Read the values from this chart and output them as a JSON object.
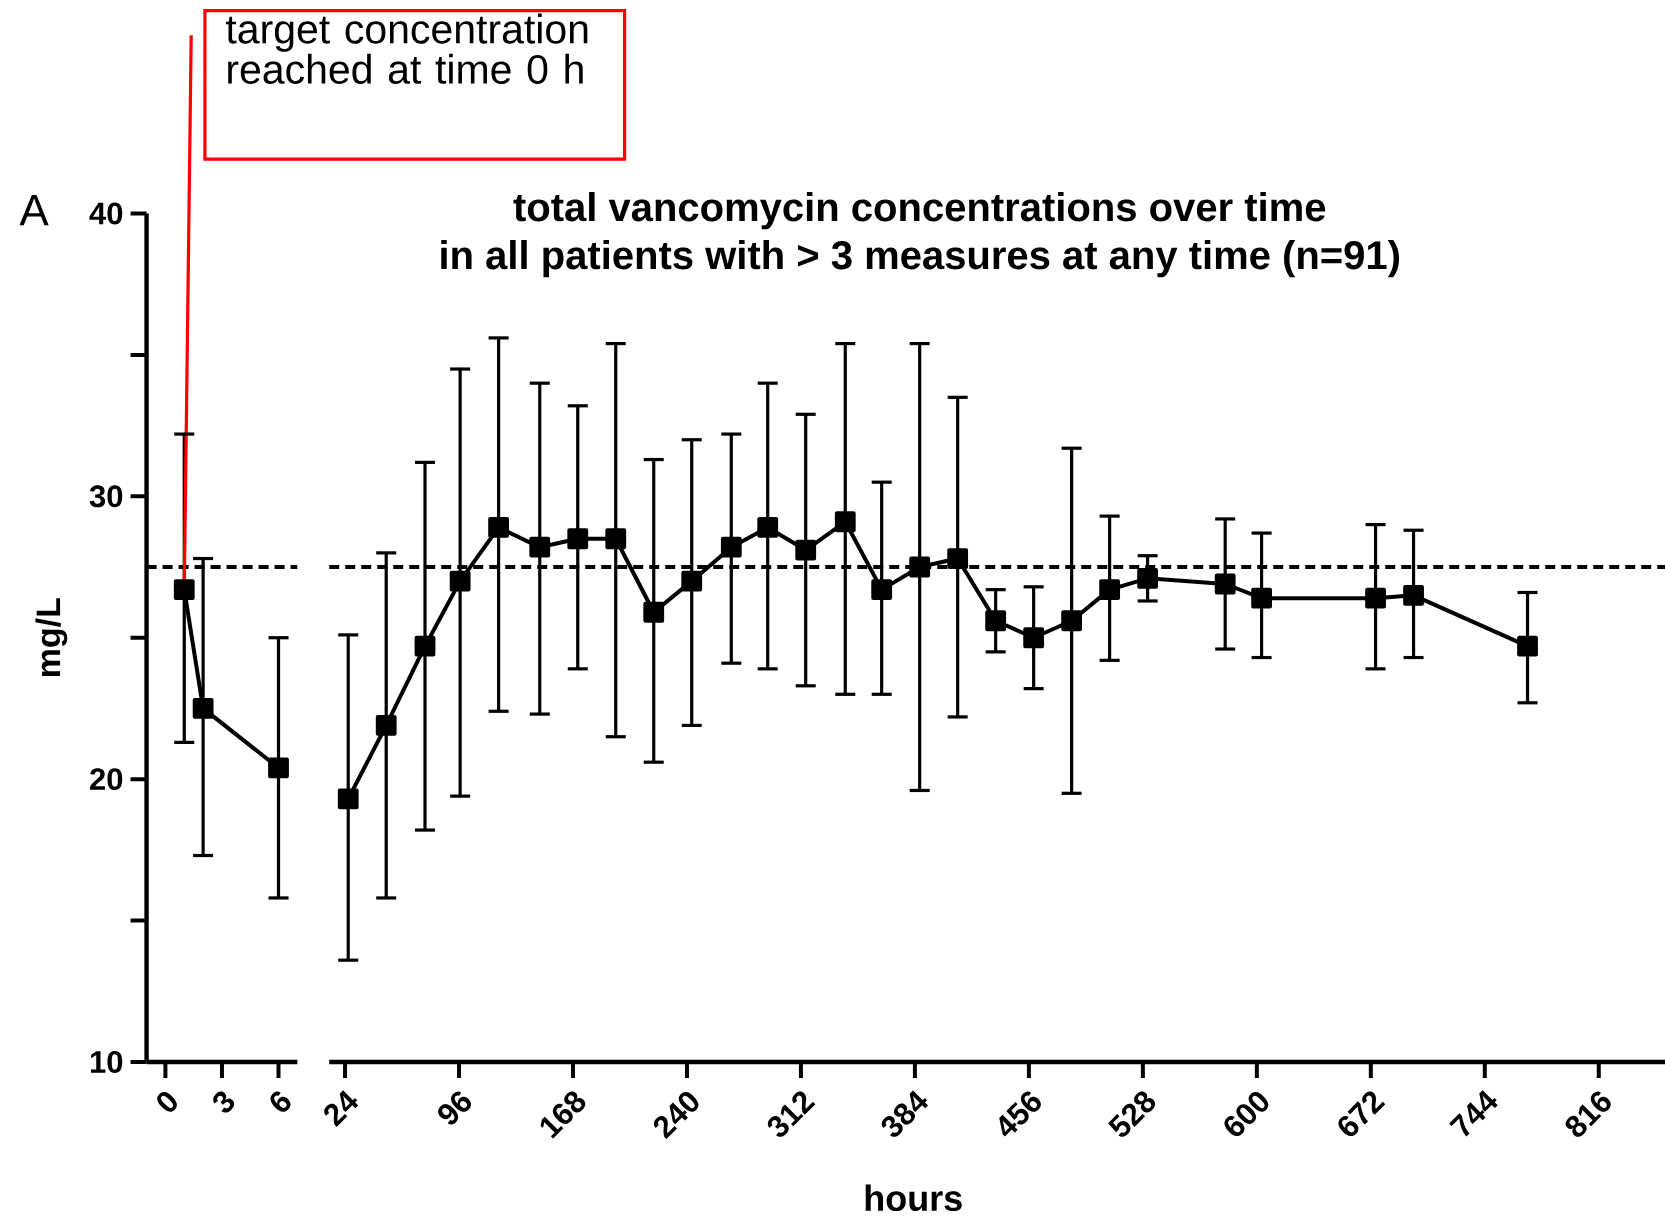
{
  "chart_data": [
    {
      "type": "line",
      "ylabel": "mg/L",
      "color": "#000000",
      "marker": "square",
      "line_style": "solid",
      "annotations": [
        "A",
        {
          "text": "target concentration reached at time 0 h",
          "x": 1,
          "y": 26.7
        }
      ],
      "x": [
        1,
        2,
        6
      ],
      "values": [
        26.7,
        22.5,
        20.4
      ],
      "errors": [
        [
          21.3,
          32.2
        ],
        [
          17.3,
          27.8
        ],
        [
          15.8,
          25.0
        ]
      ],
      "xlim": [
        -1,
        7
      ],
      "xticks": [
        0,
        3,
        6
      ],
      "ylim": [
        10,
        40
      ],
      "yticks": [
        10,
        {
          "value": 15,
          "label": null
        },
        20,
        {
          "value": 25,
          "label": null
        },
        30,
        {
          "value": 35,
          "label": null
        },
        40
      ],
      "ref_lines": [
        {
          "axis": "y",
          "value": 27.5,
          "line_style": "dashed"
        }
      ]
    },
    {
      "type": "line",
      "title": "total vancomycin concentrations over time",
      "subtitle": "in all patients with > 3 measures at any time (n=91)",
      "xlabel": "hours",
      "color": "#000000",
      "marker": "square",
      "line_style": "solid",
      "tick_labels": "x",
      "x": [
        26,
        50,
        74.5,
        96.7,
        121,
        147,
        171,
        195,
        219,
        243,
        268,
        291,
        315,
        340,
        363,
        387,
        411,
        435,
        459,
        483,
        507,
        531,
        580,
        603,
        675,
        699,
        771
      ],
      "values": [
        19.3,
        21.9,
        24.7,
        27.0,
        28.9,
        28.2,
        28.5,
        28.5,
        25.9,
        27.0,
        28.2,
        28.9,
        28.1,
        29.1,
        26.7,
        27.5,
        27.8,
        25.6,
        25.0,
        25.6,
        26.7,
        27.1,
        26.9,
        26.4,
        26.4,
        26.5,
        24.7
      ],
      "errors": [
        [
          13.6,
          25.1
        ],
        [
          15.8,
          28.0
        ],
        [
          18.2,
          31.2
        ],
        [
          19.4,
          34.5
        ],
        [
          22.4,
          35.6
        ],
        [
          22.3,
          34.0
        ],
        [
          23.9,
          33.2
        ],
        [
          21.5,
          35.4
        ],
        [
          20.6,
          31.3
        ],
        [
          21.9,
          32.0
        ],
        [
          24.1,
          32.2
        ],
        [
          23.9,
          34.0
        ],
        [
          23.3,
          32.9
        ],
        [
          23.0,
          35.4
        ],
        [
          23.0,
          30.5
        ],
        [
          19.6,
          35.4
        ],
        [
          22.2,
          33.5
        ],
        [
          24.5,
          26.7
        ],
        [
          23.2,
          26.8
        ],
        [
          19.5,
          31.7
        ],
        [
          24.2,
          29.3
        ],
        [
          26.3,
          27.9
        ],
        [
          24.6,
          29.2
        ],
        [
          24.3,
          28.7
        ],
        [
          23.9,
          29.0
        ],
        [
          24.3,
          28.8
        ],
        [
          22.7,
          26.6
        ]
      ],
      "xlim": [
        14,
        858
      ],
      "xticks": [
        24,
        96,
        168,
        240,
        312,
        384,
        456,
        528,
        600,
        672,
        744,
        816
      ],
      "ylim": [
        10,
        40
      ],
      "ref_lines": [
        {
          "axis": "y",
          "value": 27.5,
          "line_style": "dashed"
        }
      ]
    }
  ]
}
